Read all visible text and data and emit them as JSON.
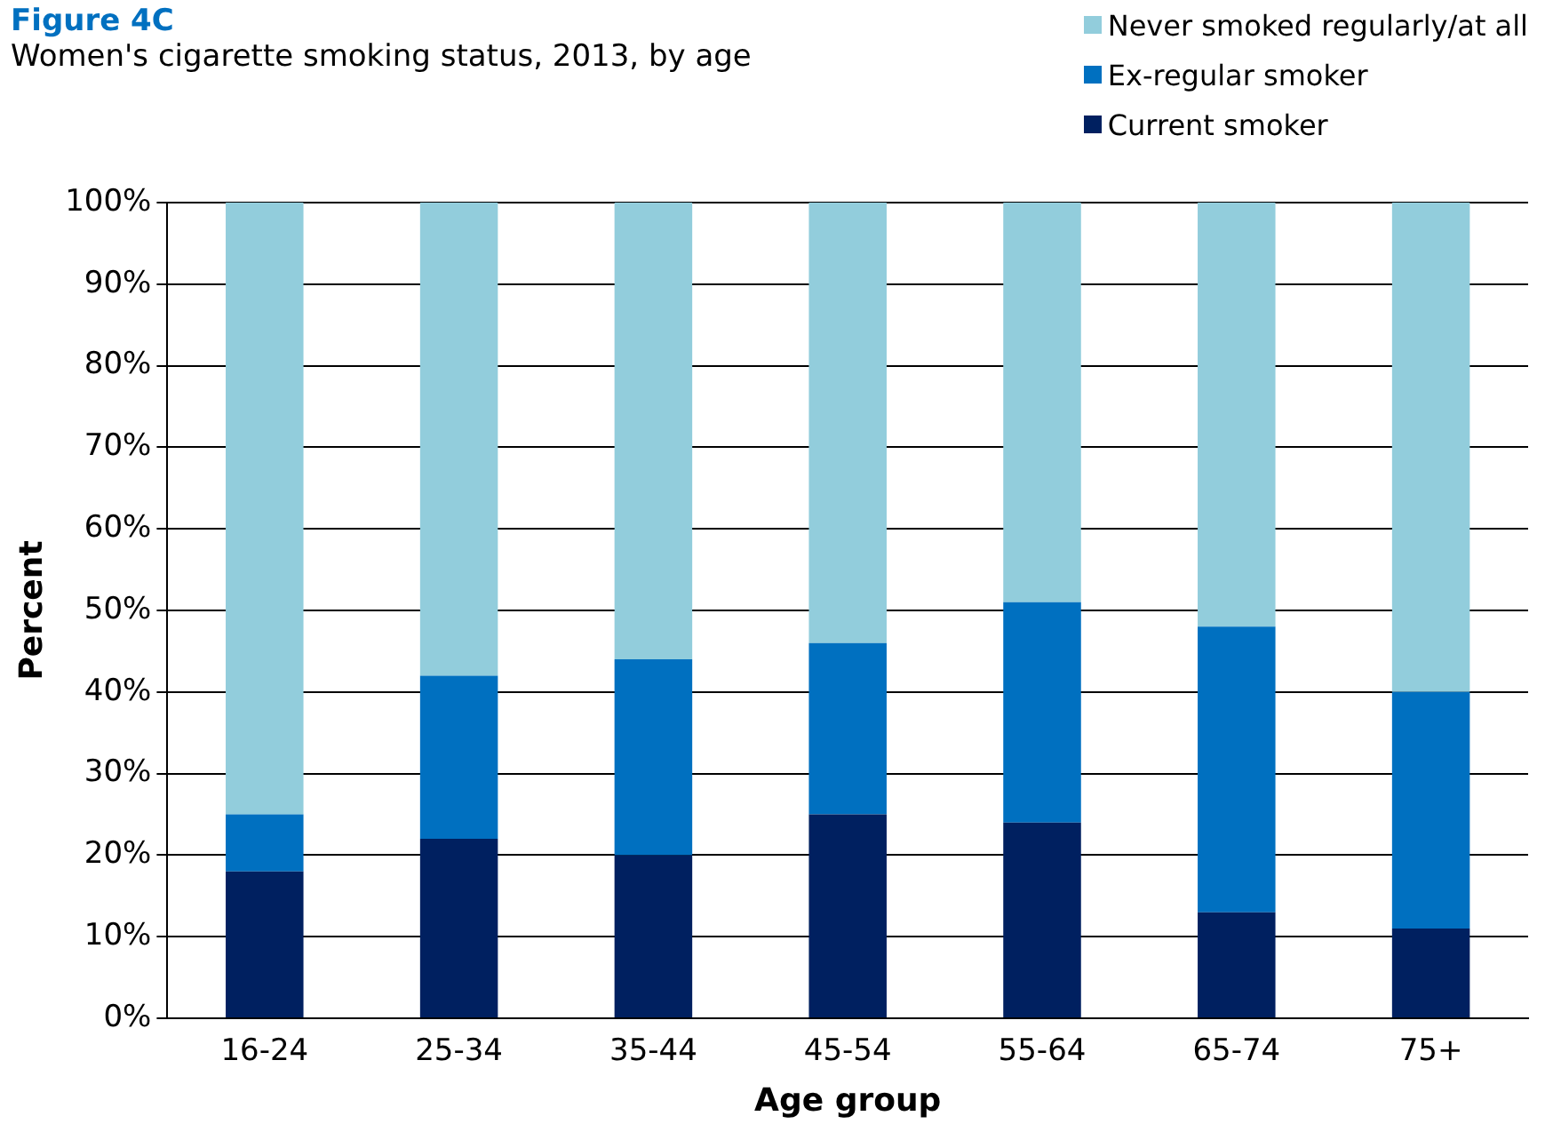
{
  "chart_data": {
    "type": "bar",
    "title": "Figure 4C",
    "subtitle": "Women's cigarette smoking status, 2013, by age",
    "xlabel": "Age group",
    "ylabel": "Percent",
    "categories": [
      "16-24",
      "25-34",
      "35-44",
      "45-54",
      "55-64",
      "65-74",
      "75+"
    ],
    "series": [
      {
        "name": "Current smoker",
        "color": "#002060",
        "values": [
          18,
          22,
          20,
          25,
          24,
          13,
          11
        ]
      },
      {
        "name": "Ex-regular smoker",
        "color": "#0070c0",
        "values": [
          7,
          20,
          24,
          21,
          27,
          35,
          29
        ]
      },
      {
        "name": "Never smoked regularly/at all",
        "color": "#92cddc",
        "values": [
          75,
          58,
          56,
          54,
          49,
          52,
          60
        ]
      }
    ],
    "stacked": true,
    "ylim": [
      0,
      100
    ],
    "yticks": [
      {
        "value": 0,
        "label": "0%"
      },
      {
        "value": 10,
        "label": "10%"
      },
      {
        "value": 20,
        "label": "20%"
      },
      {
        "value": 30,
        "label": "30%"
      },
      {
        "value": 40,
        "label": "40%"
      },
      {
        "value": 50,
        "label": "50%"
      },
      {
        "value": 60,
        "label": "60%"
      },
      {
        "value": 70,
        "label": "70%"
      },
      {
        "value": 80,
        "label": "80%"
      },
      {
        "value": 90,
        "label": "90%"
      },
      {
        "value": 100,
        "label": "100%"
      }
    ],
    "grid": "y",
    "legend": "top right"
  }
}
